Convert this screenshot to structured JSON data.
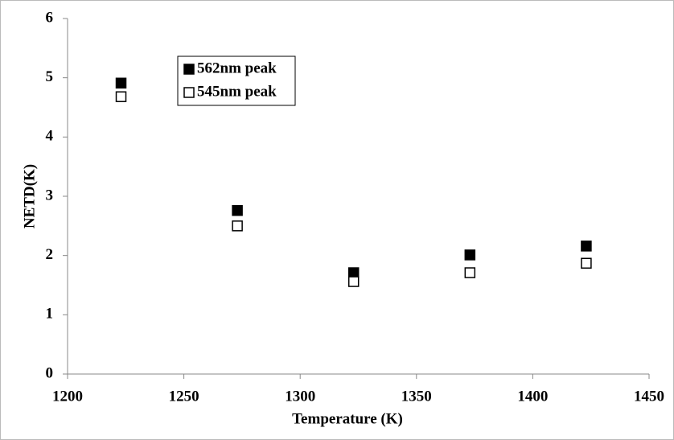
{
  "chart_data": {
    "type": "scatter",
    "x_label": "Temperature (K)",
    "y_label": "NETD(K)",
    "xlim": [
      1200,
      1450
    ],
    "xticks": [
      1200,
      1250,
      1300,
      1350,
      1400,
      1450
    ],
    "ylim": [
      0,
      6
    ],
    "yticks": [
      0,
      1,
      2,
      3,
      4,
      5,
      6
    ],
    "legend": "top-left",
    "series": [
      {
        "name": "562nm peak",
        "color": "#000000",
        "filled": true,
        "x": [
          1223,
          1273,
          1323,
          1373,
          1423
        ],
        "values": [
          4.91,
          2.76,
          1.71,
          2.01,
          2.16
        ]
      },
      {
        "name": "545nm peak",
        "color": "#000000",
        "filled": false,
        "x": [
          1223,
          1273,
          1323,
          1373,
          1423
        ],
        "values": [
          4.68,
          2.5,
          1.56,
          1.71,
          1.87
        ]
      }
    ]
  }
}
